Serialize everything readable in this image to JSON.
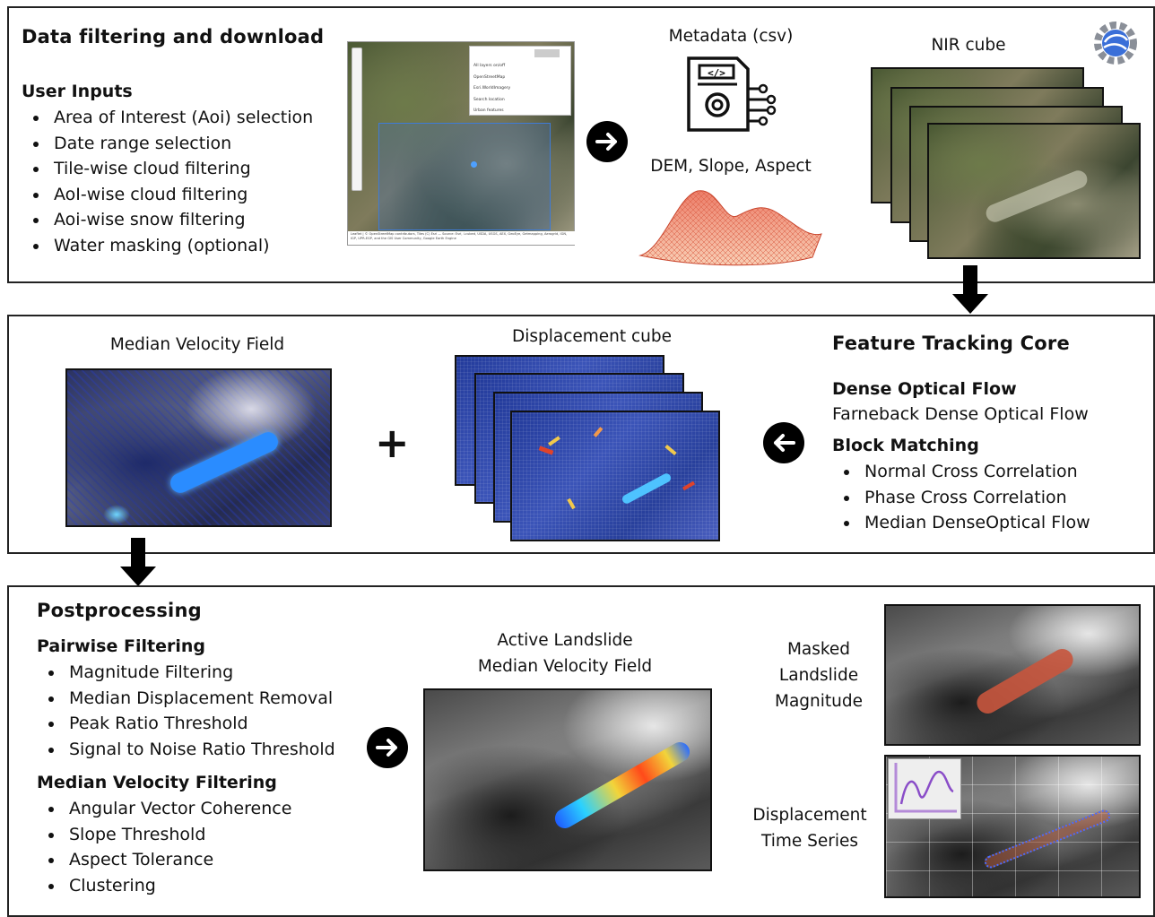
{
  "panel1": {
    "title": "Data filtering and download",
    "user_inputs_title": "User Inputs",
    "user_inputs": [
      "Area of Interest (Aoi) selection",
      "Date range selection",
      "Tile-wise cloud filtering",
      "AoI-wise cloud filtering",
      "Aoi-wise snow filtering",
      "Water masking (optional)"
    ],
    "map_layers": [
      "All layers on/off",
      "OpenStreetMap",
      "Esri.WorldImagery",
      "Search location",
      "Urban features"
    ],
    "map_attribution": "Leaflet | © OpenStreetMap contributors, Tiles (C) Esri — Source: Esri, i-cubed, USDA, USGS, AEX, GeoEye, Getmapping, Aerogrid, IGN, IGP, UPR-EGP, and the GIS User Community, Google Earth Engine",
    "metadata_label": "Metadata (csv)",
    "dem_label": "DEM, Slope, Aspect",
    "nir_label": "NIR cube"
  },
  "panel2": {
    "median_velocity_label": "Median Velocity Field",
    "plus": "+",
    "displacement_label": "Displacement cube",
    "core_title": "Feature Tracking Core",
    "dense_title": "Dense Optical Flow",
    "dense_text": "Farneback Dense Optical Flow",
    "block_title": "Block Matching",
    "block_items": [
      "Normal Cross Correlation",
      "Phase Cross Correlation",
      "Median DenseOptical Flow"
    ]
  },
  "panel3": {
    "title": "Postprocessing",
    "pairwise_title": "Pairwise Filtering",
    "pairwise_items": [
      "Magnitude Filtering",
      "Median Displacement Removal",
      "Peak Ratio Threshold",
      "Signal to Noise Ratio Threshold"
    ],
    "median_title": "Median Velocity Filtering",
    "median_items": [
      "Angular Vector Coherence",
      "Slope Threshold",
      "Aspect Tolerance",
      "Clustering"
    ],
    "active_label_line1": "Active Landslide",
    "active_label_line2": "Median Velocity Field",
    "masked_line1": "Masked",
    "masked_line2": "Landslide",
    "masked_line3": "Magnitude",
    "ts_line1": "Displacement",
    "ts_line2": "Time Series"
  },
  "colors": {
    "border": "#222222",
    "arrow": "#000000",
    "velocity_blue": "#2a6cff",
    "landslide_red": "#c8553d"
  }
}
